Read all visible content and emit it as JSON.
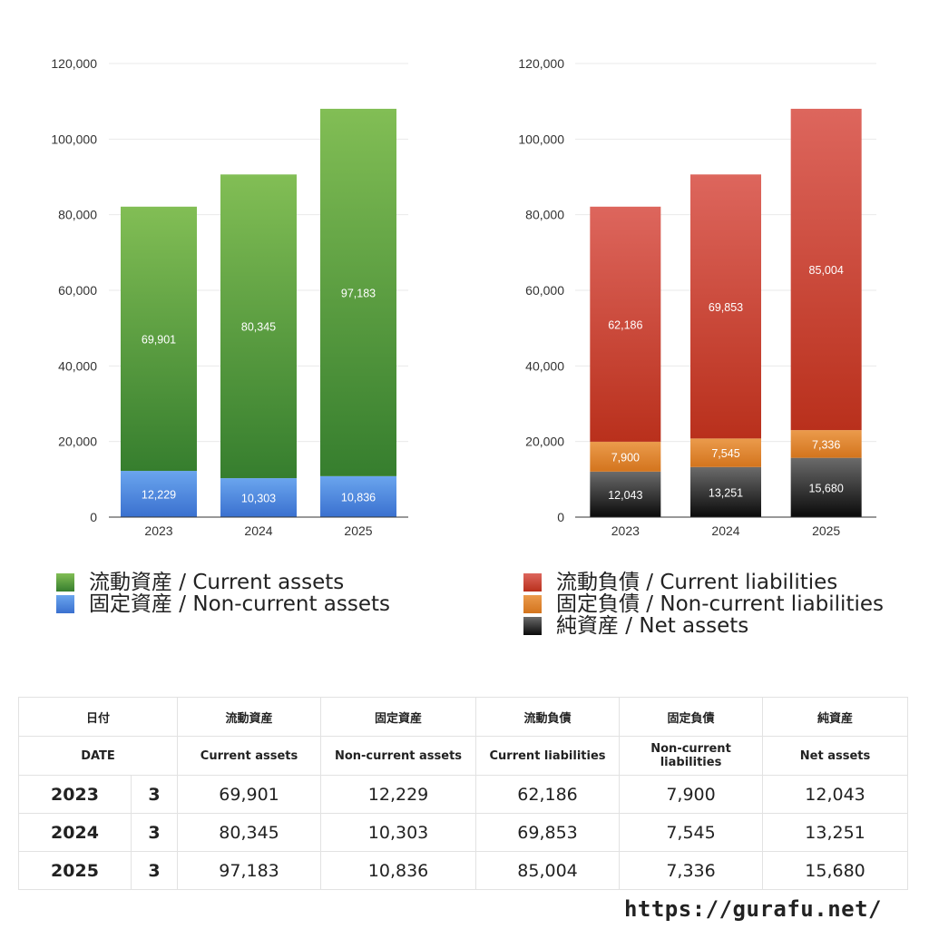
{
  "chart_data": [
    {
      "type": "bar",
      "stacked": true,
      "categories": [
        "2023",
        "2024",
        "2025"
      ],
      "ylim": [
        0,
        120000
      ],
      "yticks": [
        "0",
        "20,000",
        "40,000",
        "60,000",
        "80,000",
        "100,000",
        "120,000"
      ],
      "grid": true,
      "series": [
        {
          "name": "固定資産 / Non-current assets",
          "values": [
            12229,
            10303,
            10836
          ],
          "labels": [
            "12,229",
            "10,303",
            "10,836"
          ],
          "color_top": "#6aa5ee",
          "color_bottom": "#3a70cf"
        },
        {
          "name": "流動資産 / Current assets",
          "values": [
            69901,
            80345,
            97183
          ],
          "labels": [
            "69,901",
            "80,345",
            "97,183"
          ],
          "color_top": "#82be55",
          "color_bottom": "#367e2e"
        }
      ],
      "legend_order": [
        1,
        0
      ]
    },
    {
      "type": "bar",
      "stacked": true,
      "categories": [
        "2023",
        "2024",
        "2025"
      ],
      "ylim": [
        0,
        120000
      ],
      "yticks": [
        "0",
        "20,000",
        "40,000",
        "60,000",
        "80,000",
        "100,000",
        "120,000"
      ],
      "grid": true,
      "series": [
        {
          "name": "純資産 / Net assets",
          "values": [
            12043,
            13251,
            15680
          ],
          "labels": [
            "12,043",
            "13,251",
            "15,680"
          ],
          "color_top": "#6b6b6b",
          "color_bottom": "#0a0a0a"
        },
        {
          "name": "固定負債 / Non-current liabilities",
          "values": [
            7900,
            7545,
            7336
          ],
          "labels": [
            "7,900",
            "7,545",
            "7,336"
          ],
          "color_top": "#eb9b4c",
          "color_bottom": "#d3741d"
        },
        {
          "name": "流動負債 / Current liabilities",
          "values": [
            62186,
            69853,
            85004
          ],
          "labels": [
            "62,186",
            "69,853",
            "85,004"
          ],
          "color_top": "#dd665d",
          "color_bottom": "#b9301c"
        }
      ],
      "legend_order": [
        2,
        1,
        0
      ]
    }
  ],
  "table": {
    "headers_ja": [
      "日付",
      "流動資産",
      "固定資産",
      "流動負債",
      "固定負債",
      "純資産"
    ],
    "headers_en": [
      "DATE",
      "Current assets",
      "Non-current assets",
      "Current liabilities",
      "Non-current liabilities",
      "Net assets"
    ],
    "rows": [
      {
        "year": "2023",
        "month": "3",
        "values": [
          "69,901",
          "12,229",
          "62,186",
          "7,900",
          "12,043"
        ]
      },
      {
        "year": "2024",
        "month": "3",
        "values": [
          "80,345",
          "10,303",
          "69,853",
          "7,545",
          "13,251"
        ]
      },
      {
        "year": "2025",
        "month": "3",
        "values": [
          "97,183",
          "10,836",
          "85,004",
          "7,336",
          "15,680"
        ]
      }
    ]
  },
  "footer": {
    "url": "https://gurafu.net/"
  }
}
